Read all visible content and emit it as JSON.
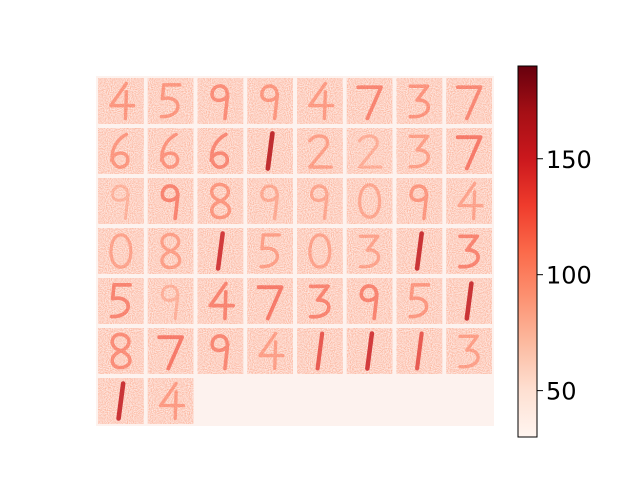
{
  "chart_data": {
    "type": "heatmap",
    "title": "",
    "xlabel": "",
    "ylabel": "",
    "colormap": "Reds",
    "colorbar": {
      "range": [
        30,
        190
      ],
      "ticks": [
        50,
        100,
        150
      ],
      "tick_labels": [
        "50",
        "100",
        "150"
      ]
    },
    "grid": {
      "rows": 7,
      "cols": 8,
      "tiles_shown": 50
    },
    "tiles": [
      {
        "digit": "4",
        "stroke": 0.3
      },
      {
        "digit": "5",
        "stroke": 0.3
      },
      {
        "digit": "9",
        "stroke": 0.35
      },
      {
        "digit": "9",
        "stroke": 0.3
      },
      {
        "digit": "4",
        "stroke": 0.28
      },
      {
        "digit": "7",
        "stroke": 0.4
      },
      {
        "digit": "3",
        "stroke": 0.32
      },
      {
        "digit": "7",
        "stroke": 0.38
      },
      {
        "digit": "6",
        "stroke": 0.3
      },
      {
        "digit": "6",
        "stroke": 0.32
      },
      {
        "digit": "6",
        "stroke": 0.38
      },
      {
        "digit": "1",
        "stroke": 0.85
      },
      {
        "digit": "2",
        "stroke": 0.25
      },
      {
        "digit": "2",
        "stroke": 0.15
      },
      {
        "digit": "3",
        "stroke": 0.25
      },
      {
        "digit": "7",
        "stroke": 0.45
      },
      {
        "digit": "9",
        "stroke": 0.1
      },
      {
        "digit": "9",
        "stroke": 0.4
      },
      {
        "digit": "8",
        "stroke": 0.3
      },
      {
        "digit": "9",
        "stroke": 0.18
      },
      {
        "digit": "9",
        "stroke": 0.2
      },
      {
        "digit": "0",
        "stroke": 0.2
      },
      {
        "digit": "9",
        "stroke": 0.3
      },
      {
        "digit": "4",
        "stroke": 0.22
      },
      {
        "digit": "0",
        "stroke": 0.22
      },
      {
        "digit": "8",
        "stroke": 0.25
      },
      {
        "digit": "1",
        "stroke": 0.75
      },
      {
        "digit": "5",
        "stroke": 0.25
      },
      {
        "digit": "0",
        "stroke": 0.22
      },
      {
        "digit": "3",
        "stroke": 0.22
      },
      {
        "digit": "1",
        "stroke": 0.8
      },
      {
        "digit": "3",
        "stroke": 0.4
      },
      {
        "digit": "5",
        "stroke": 0.4
      },
      {
        "digit": "9",
        "stroke": 0.12
      },
      {
        "digit": "4",
        "stroke": 0.4
      },
      {
        "digit": "7",
        "stroke": 0.45
      },
      {
        "digit": "3",
        "stroke": 0.4
      },
      {
        "digit": "9",
        "stroke": 0.4
      },
      {
        "digit": "5",
        "stroke": 0.3
      },
      {
        "digit": "1",
        "stroke": 0.8
      },
      {
        "digit": "8",
        "stroke": 0.35
      },
      {
        "digit": "7",
        "stroke": 0.45
      },
      {
        "digit": "9",
        "stroke": 0.38
      },
      {
        "digit": "4",
        "stroke": 0.25
      },
      {
        "digit": "1",
        "stroke": 0.6
      },
      {
        "digit": "1",
        "stroke": 0.75
      },
      {
        "digit": "1",
        "stroke": 0.6
      },
      {
        "digit": "3",
        "stroke": 0.25
      },
      {
        "digit": "1",
        "stroke": 0.8
      },
      {
        "digit": "4",
        "stroke": 0.28
      }
    ]
  }
}
